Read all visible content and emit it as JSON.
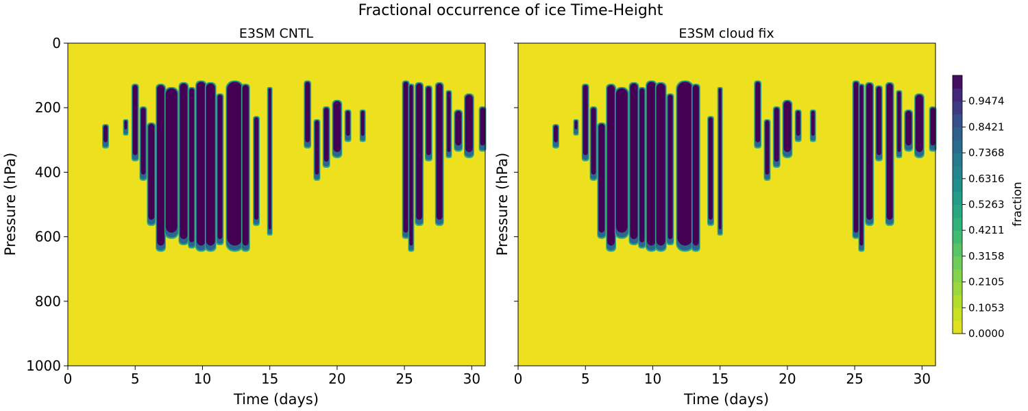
{
  "chart_data": {
    "type": "heatmap",
    "title": "Fractional occurrence of ice Time-Height",
    "xlabel": "Time (days)",
    "ylabel": "Pressure (hPa)",
    "xlim": [
      0,
      31
    ],
    "ylim": [
      1000,
      0
    ],
    "x_ticks": [
      "0",
      "5",
      "10",
      "15",
      "20",
      "25",
      "30"
    ],
    "y_ticks": [
      "0",
      "200",
      "400",
      "600",
      "800",
      "1000"
    ],
    "panels": [
      {
        "title": "E3SM CNTL",
        "features": [
          {
            "day": 2.8,
            "w": 0.35,
            "top": 255,
            "bottom": 320
          },
          {
            "day": 4.3,
            "w": 0.25,
            "top": 240,
            "bottom": 280
          },
          {
            "day": 5.0,
            "w": 0.4,
            "top": 130,
            "bottom": 360
          },
          {
            "day": 5.6,
            "w": 0.4,
            "top": 200,
            "bottom": 420
          },
          {
            "day": 6.2,
            "w": 0.5,
            "top": 250,
            "bottom": 560
          },
          {
            "day": 6.9,
            "w": 0.6,
            "top": 130,
            "bottom": 640
          },
          {
            "day": 7.7,
            "w": 0.9,
            "top": 140,
            "bottom": 600
          },
          {
            "day": 8.6,
            "w": 0.6,
            "top": 125,
            "bottom": 620
          },
          {
            "day": 9.2,
            "w": 0.4,
            "top": 140,
            "bottom": 630
          },
          {
            "day": 9.9,
            "w": 0.7,
            "top": 120,
            "bottom": 640
          },
          {
            "day": 10.6,
            "w": 0.7,
            "top": 125,
            "bottom": 640
          },
          {
            "day": 11.3,
            "w": 0.4,
            "top": 160,
            "bottom": 620
          },
          {
            "day": 12.4,
            "w": 1.2,
            "top": 120,
            "bottom": 640
          },
          {
            "day": 13.2,
            "w": 0.5,
            "top": 130,
            "bottom": 640
          },
          {
            "day": 14.0,
            "w": 0.35,
            "top": 230,
            "bottom": 560
          },
          {
            "day": 15.0,
            "w": 0.25,
            "top": 140,
            "bottom": 590
          },
          {
            "day": 17.8,
            "w": 0.4,
            "top": 120,
            "bottom": 320
          },
          {
            "day": 18.5,
            "w": 0.35,
            "top": 240,
            "bottom": 420
          },
          {
            "day": 19.2,
            "w": 0.4,
            "top": 200,
            "bottom": 380
          },
          {
            "day": 20.0,
            "w": 0.6,
            "top": 180,
            "bottom": 350
          },
          {
            "day": 20.8,
            "w": 0.35,
            "top": 210,
            "bottom": 300
          },
          {
            "day": 21.9,
            "w": 0.3,
            "top": 210,
            "bottom": 300
          },
          {
            "day": 25.1,
            "w": 0.4,
            "top": 120,
            "bottom": 600
          },
          {
            "day": 25.5,
            "w": 0.3,
            "top": 130,
            "bottom": 640
          },
          {
            "day": 26.1,
            "w": 0.5,
            "top": 125,
            "bottom": 560
          },
          {
            "day": 26.8,
            "w": 0.4,
            "top": 135,
            "bottom": 360
          },
          {
            "day": 27.6,
            "w": 0.5,
            "top": 125,
            "bottom": 560
          },
          {
            "day": 28.3,
            "w": 0.3,
            "top": 150,
            "bottom": 350
          },
          {
            "day": 29.0,
            "w": 0.5,
            "top": 210,
            "bottom": 330
          },
          {
            "day": 29.8,
            "w": 0.6,
            "top": 160,
            "bottom": 350
          },
          {
            "day": 30.8,
            "w": 0.4,
            "top": 200,
            "bottom": 330
          }
        ]
      },
      {
        "title": "E3SM cloud fix",
        "features": [
          {
            "day": 2.8,
            "w": 0.35,
            "top": 255,
            "bottom": 320
          },
          {
            "day": 4.3,
            "w": 0.25,
            "top": 240,
            "bottom": 280
          },
          {
            "day": 5.0,
            "w": 0.4,
            "top": 130,
            "bottom": 360
          },
          {
            "day": 5.6,
            "w": 0.4,
            "top": 200,
            "bottom": 420
          },
          {
            "day": 6.2,
            "w": 0.5,
            "top": 250,
            "bottom": 600
          },
          {
            "day": 6.9,
            "w": 0.6,
            "top": 130,
            "bottom": 640
          },
          {
            "day": 7.7,
            "w": 0.9,
            "top": 140,
            "bottom": 600
          },
          {
            "day": 8.6,
            "w": 0.6,
            "top": 125,
            "bottom": 620
          },
          {
            "day": 9.2,
            "w": 0.4,
            "top": 140,
            "bottom": 630
          },
          {
            "day": 9.9,
            "w": 0.7,
            "top": 120,
            "bottom": 640
          },
          {
            "day": 10.6,
            "w": 0.7,
            "top": 125,
            "bottom": 640
          },
          {
            "day": 11.3,
            "w": 0.4,
            "top": 160,
            "bottom": 620
          },
          {
            "day": 12.4,
            "w": 1.2,
            "top": 120,
            "bottom": 640
          },
          {
            "day": 13.2,
            "w": 0.5,
            "top": 130,
            "bottom": 640
          },
          {
            "day": 14.3,
            "w": 0.35,
            "top": 230,
            "bottom": 560
          },
          {
            "day": 15.0,
            "w": 0.25,
            "top": 140,
            "bottom": 590
          },
          {
            "day": 17.8,
            "w": 0.4,
            "top": 120,
            "bottom": 320
          },
          {
            "day": 18.5,
            "w": 0.35,
            "top": 240,
            "bottom": 420
          },
          {
            "day": 19.2,
            "w": 0.4,
            "top": 200,
            "bottom": 380
          },
          {
            "day": 20.0,
            "w": 0.6,
            "top": 180,
            "bottom": 350
          },
          {
            "day": 20.8,
            "w": 0.35,
            "top": 210,
            "bottom": 300
          },
          {
            "day": 21.9,
            "w": 0.3,
            "top": 210,
            "bottom": 300
          },
          {
            "day": 25.1,
            "w": 0.4,
            "top": 120,
            "bottom": 600
          },
          {
            "day": 25.5,
            "w": 0.3,
            "top": 130,
            "bottom": 640
          },
          {
            "day": 26.1,
            "w": 0.5,
            "top": 125,
            "bottom": 560
          },
          {
            "day": 26.8,
            "w": 0.4,
            "top": 135,
            "bottom": 360
          },
          {
            "day": 27.6,
            "w": 0.5,
            "top": 125,
            "bottom": 560
          },
          {
            "day": 28.3,
            "w": 0.3,
            "top": 150,
            "bottom": 350
          },
          {
            "day": 29.0,
            "w": 0.5,
            "top": 210,
            "bottom": 330
          },
          {
            "day": 29.8,
            "w": 0.6,
            "top": 160,
            "bottom": 350
          },
          {
            "day": 30.8,
            "w": 0.4,
            "top": 200,
            "bottom": 330
          }
        ]
      }
    ],
    "colorbar": {
      "label": "fraction",
      "ticks": [
        "0.0000",
        "0.1053",
        "0.2105",
        "0.3158",
        "0.4211",
        "0.5263",
        "0.6316",
        "0.7368",
        "0.8421",
        "0.9474"
      ],
      "vmin": 0,
      "vmax": 1.0526,
      "levels": 20
    },
    "colors": {
      "background_low": "#ece01f",
      "high": "#440154"
    }
  }
}
